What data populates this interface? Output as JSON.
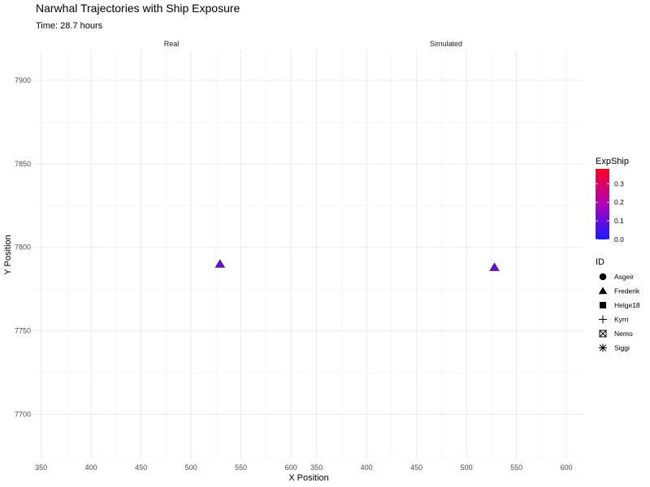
{
  "chart_data": {
    "type": "scatter",
    "title": "Narwhal Trajectories with Ship Exposure",
    "subtitle": "Time: 28.7 hours",
    "xlabel": "X Position",
    "ylabel": "Y Position",
    "xlim": [
      343,
      617
    ],
    "ylim": [
      7673,
      7918
    ],
    "x_ticks": [
      350,
      400,
      450,
      500,
      550,
      600
    ],
    "y_ticks": [
      7700,
      7750,
      7800,
      7850,
      7900
    ],
    "panels": [
      {
        "label": "Real",
        "points": [
          {
            "id": "Frederik",
            "x": 529,
            "y": 7790,
            "exp_ship": 0.1
          }
        ]
      },
      {
        "label": "Simulated",
        "points": [
          {
            "id": "Frederik",
            "x": 528,
            "y": 7788,
            "exp_ship": 0.1
          }
        ]
      }
    ],
    "color_legend": {
      "title": "ExpShip",
      "min": 0.0,
      "max": 0.38,
      "ticks": [
        "0.0",
        "0.1",
        "0.2",
        "0.3"
      ],
      "tick_values": [
        0.0,
        0.1,
        0.2,
        0.3
      ],
      "low_color": "#1a1aff",
      "high_color": "#ff0022"
    },
    "shape_legend": {
      "title": "ID",
      "items": [
        {
          "label": "Asgeir",
          "shape": "circle"
        },
        {
          "label": "Frederik",
          "shape": "triangle"
        },
        {
          "label": "Helge18",
          "shape": "square"
        },
        {
          "label": "Kyrri",
          "shape": "plus"
        },
        {
          "label": "Nemo",
          "shape": "square-cross"
        },
        {
          "label": "Siggi",
          "shape": "asterisk"
        }
      ]
    }
  }
}
